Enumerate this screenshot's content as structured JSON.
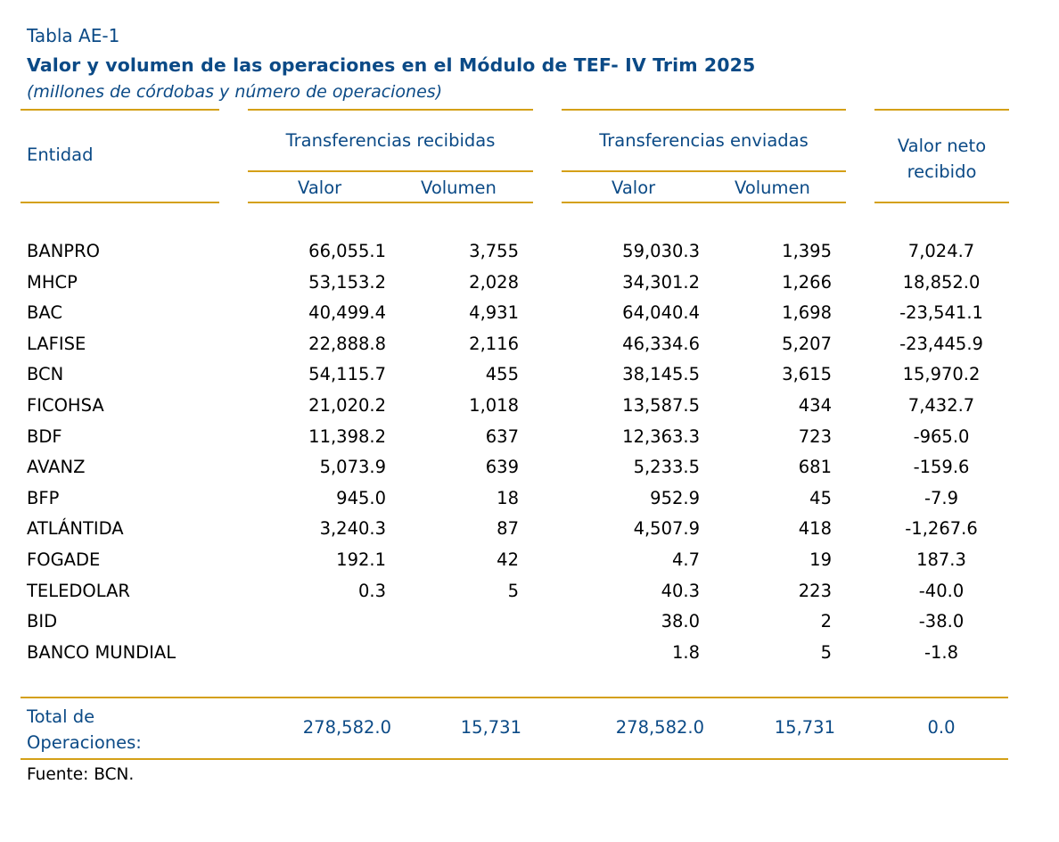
{
  "header": {
    "table_label": "Tabla AE-1",
    "title": "Valor y volumen de las operaciones en el Módulo de TEF- IV Trim 2025",
    "subtitle": "(millones de córdobas y número de operaciones)"
  },
  "columns": {
    "entity": "Entidad",
    "received_group": "Transferencias recibidas",
    "sent_group": "Transferencias enviadas",
    "net_line1": "Valor neto",
    "net_line2": "recibido",
    "value": "Valor",
    "volume": "Volumen"
  },
  "rows": [
    {
      "entity": "BANPRO",
      "recv_value": "66,055.1",
      "recv_volume": "3,755",
      "sent_value": "59,030.3",
      "sent_volume": "1,395",
      "net": "7,024.7"
    },
    {
      "entity": "MHCP",
      "recv_value": "53,153.2",
      "recv_volume": "2,028",
      "sent_value": "34,301.2",
      "sent_volume": "1,266",
      "net": "18,852.0"
    },
    {
      "entity": "BAC",
      "recv_value": "40,499.4",
      "recv_volume": "4,931",
      "sent_value": "64,040.4",
      "sent_volume": "1,698",
      "net": "-23,541.1"
    },
    {
      "entity": "LAFISE",
      "recv_value": "22,888.8",
      "recv_volume": "2,116",
      "sent_value": "46,334.6",
      "sent_volume": "5,207",
      "net": "-23,445.9"
    },
    {
      "entity": "BCN",
      "recv_value": "54,115.7",
      "recv_volume": "455",
      "sent_value": "38,145.5",
      "sent_volume": "3,615",
      "net": "15,970.2"
    },
    {
      "entity": "FICOHSA",
      "recv_value": "21,020.2",
      "recv_volume": "1,018",
      "sent_value": "13,587.5",
      "sent_volume": "434",
      "net": "7,432.7"
    },
    {
      "entity": "BDF",
      "recv_value": "11,398.2",
      "recv_volume": "637",
      "sent_value": "12,363.3",
      "sent_volume": "723",
      "net": "-965.0"
    },
    {
      "entity": "AVANZ",
      "recv_value": "5,073.9",
      "recv_volume": "639",
      "sent_value": "5,233.5",
      "sent_volume": "681",
      "net": "-159.6"
    },
    {
      "entity": "BFP",
      "recv_value": "945.0",
      "recv_volume": "18",
      "sent_value": "952.9",
      "sent_volume": "45",
      "net": "-7.9"
    },
    {
      "entity": "ATLÁNTIDA",
      "recv_value": "3,240.3",
      "recv_volume": "87",
      "sent_value": "4,507.9",
      "sent_volume": "418",
      "net": "-1,267.6"
    },
    {
      "entity": "FOGADE",
      "recv_value": "192.1",
      "recv_volume": "42",
      "sent_value": "4.7",
      "sent_volume": "19",
      "net": "187.3"
    },
    {
      "entity": "TELEDOLAR",
      "recv_value": "0.3",
      "recv_volume": "5",
      "sent_value": "40.3",
      "sent_volume": "223",
      "net": "-40.0"
    },
    {
      "entity": "BID",
      "recv_value": "",
      "recv_volume": "",
      "sent_value": "38.0",
      "sent_volume": "2",
      "net": "-38.0"
    },
    {
      "entity": "BANCO MUNDIAL",
      "recv_value": "",
      "recv_volume": "",
      "sent_value": "1.8",
      "sent_volume": "5",
      "net": "-1.8"
    }
  ],
  "total": {
    "label_line1": "Total de",
    "label_line2": "Operaciones:",
    "recv_value": "278,582.0",
    "recv_volume": "15,731",
    "sent_value": "278,582.0",
    "sent_volume": "15,731",
    "net": "0.0"
  },
  "footer": {
    "source": "Fuente: BCN."
  },
  "colors": {
    "heading_blue": "#0b4a86",
    "rule_gold": "#d4a017"
  }
}
